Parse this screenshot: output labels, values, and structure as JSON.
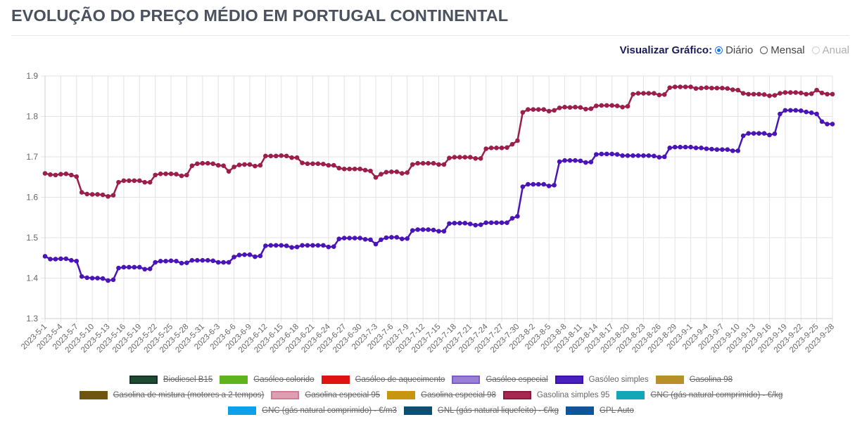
{
  "page": {
    "title": "EVOLUÇÃO DO PREÇO MÉDIO EM PORTUGAL CONTINENTAL"
  },
  "view": {
    "label": "Visualizar Gráfico:",
    "options": [
      {
        "label": "Diário",
        "checked": true,
        "disabled": false
      },
      {
        "label": "Mensal",
        "checked": false,
        "disabled": false
      },
      {
        "label": "Anual",
        "checked": false,
        "disabled": true
      }
    ]
  },
  "legend": [
    {
      "label": "Biodiesel B15",
      "color": "#1f4a32",
      "border": "#15332a",
      "hidden": true
    },
    {
      "label": "Gasóleo colorido",
      "color": "#5fb41e",
      "border": "#5fb41e",
      "hidden": true
    },
    {
      "label": "Gasóleo de aquecimento",
      "color": "#e01313",
      "border": "#e01313",
      "hidden": true
    },
    {
      "label": "Gasóleo especial",
      "color": "#9a7fd6",
      "border": "#7d5cc8",
      "hidden": true
    },
    {
      "label": "Gasóleo simples",
      "color": "#4a1fbf",
      "border": "#3d12a8",
      "hidden": false
    },
    {
      "label": "Gasolina 98",
      "color": "#b8902a",
      "border": "#b8902a",
      "hidden": true
    },
    {
      "label": "Gasolina de mistura (motores a 2 tempos)",
      "color": "#6e5510",
      "border": "#6e5510",
      "hidden": true
    },
    {
      "label": "Gasolina especial 95",
      "color": "#de9fb2",
      "border": "#d17b96",
      "hidden": true
    },
    {
      "label": "Gasolina especial 98",
      "color": "#c8950e",
      "border": "#c8950e",
      "hidden": true
    },
    {
      "label": "Gasolina simples 95",
      "color": "#a52950",
      "border": "#8c1a3f",
      "hidden": false
    },
    {
      "label": "GNC (gás natural comprimido) - €/kg",
      "color": "#12a6b8",
      "border": "#12a6b8",
      "hidden": true
    },
    {
      "label": "GNC (gás natural comprimido) - €/m3",
      "color": "#0ca0e8",
      "border": "#0ca0e8",
      "hidden": true
    },
    {
      "label": "GNL (gás natural liquefeito) - €/kg",
      "color": "#0d4f73",
      "border": "#0d4f73",
      "hidden": true
    },
    {
      "label": "GPL Auto",
      "color": "#10559a",
      "border": "#10559a",
      "hidden": true
    }
  ],
  "chart_data": {
    "type": "line",
    "title": "",
    "xlabel": "",
    "ylabel": "",
    "ylim": [
      1.3,
      1.9
    ],
    "yticks": [
      "1.3",
      "1.4",
      "1.5",
      "1.6",
      "1.7",
      "1.8",
      "1.9"
    ],
    "grid": true,
    "x_start": "2023-5-1",
    "x_end": "2023-9-28",
    "x_tick_step_days": 3,
    "xtick_labels": [
      "2023-5-1",
      "2023-5-4",
      "2023-5-7",
      "2023-5-10",
      "2023-5-13",
      "2023-5-16",
      "2023-5-19",
      "2023-5-22",
      "2023-5-25",
      "2023-5-28",
      "2023-5-31",
      "2023-6-3",
      "2023-6-6",
      "2023-6-9",
      "2023-6-12",
      "2023-6-15",
      "2023-6-18",
      "2023-6-21",
      "2023-6-24",
      "2023-6-27",
      "2023-6-30",
      "2023-7-3",
      "2023-7-6",
      "2023-7-9",
      "2023-7-12",
      "2023-7-15",
      "2023-7-18",
      "2023-7-21",
      "2023-7-24",
      "2023-7-27",
      "2023-7-30",
      "2023-8-2",
      "2023-8-5",
      "2023-8-8",
      "2023-8-11",
      "2023-8-14",
      "2023-8-17",
      "2023-8-20",
      "2023-8-23",
      "2023-8-26",
      "2023-8-29",
      "2023-9-1",
      "2023-9-4",
      "2023-9-7",
      "2023-9-10",
      "2023-9-13",
      "2023-9-16",
      "2023-9-19",
      "2023-9-22",
      "2023-9-25",
      "2023-9-28"
    ],
    "legend_position": "bottom",
    "series": [
      {
        "name": "Gasolina simples 95",
        "color": "#9b1f4a",
        "values": [
          1.659,
          1.656,
          1.655,
          1.657,
          1.658,
          1.655,
          1.651,
          1.612,
          1.608,
          1.607,
          1.607,
          1.606,
          1.602,
          1.605,
          1.637,
          1.641,
          1.641,
          1.641,
          1.641,
          1.637,
          1.637,
          1.655,
          1.658,
          1.658,
          1.658,
          1.657,
          1.653,
          1.655,
          1.678,
          1.683,
          1.684,
          1.684,
          1.683,
          1.679,
          1.678,
          1.664,
          1.675,
          1.68,
          1.681,
          1.681,
          1.677,
          1.679,
          1.702,
          1.702,
          1.702,
          1.703,
          1.702,
          1.698,
          1.698,
          1.685,
          1.683,
          1.683,
          1.683,
          1.682,
          1.679,
          1.679,
          1.672,
          1.67,
          1.67,
          1.67,
          1.67,
          1.667,
          1.665,
          1.649,
          1.657,
          1.662,
          1.663,
          1.663,
          1.659,
          1.661,
          1.681,
          1.684,
          1.684,
          1.684,
          1.684,
          1.681,
          1.681,
          1.697,
          1.699,
          1.699,
          1.699,
          1.699,
          1.696,
          1.696,
          1.72,
          1.722,
          1.722,
          1.722,
          1.723,
          1.731,
          1.74,
          1.81,
          1.817,
          1.817,
          1.817,
          1.817,
          1.813,
          1.815,
          1.821,
          1.823,
          1.822,
          1.823,
          1.822,
          1.818,
          1.819,
          1.826,
          1.827,
          1.827,
          1.827,
          1.826,
          1.823,
          1.825,
          1.855,
          1.857,
          1.857,
          1.857,
          1.857,
          1.853,
          1.854,
          1.871,
          1.873,
          1.873,
          1.873,
          1.873,
          1.869,
          1.87,
          1.871,
          1.87,
          1.87,
          1.87,
          1.869,
          1.866,
          1.865,
          1.857,
          1.855,
          1.855,
          1.855,
          1.854,
          1.851,
          1.852,
          1.857,
          1.859,
          1.859,
          1.859,
          1.858,
          1.855,
          1.856,
          1.865,
          1.858,
          1.855,
          1.855
        ]
      },
      {
        "name": "Gasóleo simples",
        "color": "#4b14b8",
        "values": [
          1.454,
          1.447,
          1.447,
          1.448,
          1.448,
          1.444,
          1.442,
          1.404,
          1.401,
          1.4,
          1.4,
          1.399,
          1.394,
          1.396,
          1.425,
          1.427,
          1.427,
          1.427,
          1.427,
          1.422,
          1.423,
          1.439,
          1.442,
          1.442,
          1.443,
          1.442,
          1.437,
          1.438,
          1.444,
          1.444,
          1.444,
          1.444,
          1.443,
          1.439,
          1.439,
          1.439,
          1.452,
          1.457,
          1.458,
          1.458,
          1.453,
          1.455,
          1.48,
          1.481,
          1.481,
          1.481,
          1.48,
          1.476,
          1.477,
          1.481,
          1.481,
          1.481,
          1.481,
          1.481,
          1.477,
          1.478,
          1.497,
          1.499,
          1.499,
          1.499,
          1.499,
          1.496,
          1.495,
          1.484,
          1.495,
          1.5,
          1.501,
          1.501,
          1.497,
          1.498,
          1.518,
          1.52,
          1.52,
          1.52,
          1.519,
          1.516,
          1.516,
          1.535,
          1.536,
          1.536,
          1.536,
          1.534,
          1.531,
          1.532,
          1.537,
          1.537,
          1.537,
          1.537,
          1.537,
          1.548,
          1.553,
          1.626,
          1.632,
          1.632,
          1.632,
          1.632,
          1.628,
          1.63,
          1.688,
          1.691,
          1.691,
          1.691,
          1.69,
          1.686,
          1.687,
          1.706,
          1.707,
          1.707,
          1.707,
          1.706,
          1.703,
          1.703,
          1.703,
          1.703,
          1.703,
          1.703,
          1.702,
          1.699,
          1.7,
          1.722,
          1.724,
          1.724,
          1.724,
          1.724,
          1.722,
          1.722,
          1.72,
          1.719,
          1.718,
          1.718,
          1.718,
          1.715,
          1.715,
          1.752,
          1.758,
          1.758,
          1.758,
          1.758,
          1.754,
          1.757,
          1.806,
          1.815,
          1.815,
          1.815,
          1.814,
          1.811,
          1.809,
          1.806,
          1.787,
          1.781,
          1.781
        ]
      }
    ]
  }
}
